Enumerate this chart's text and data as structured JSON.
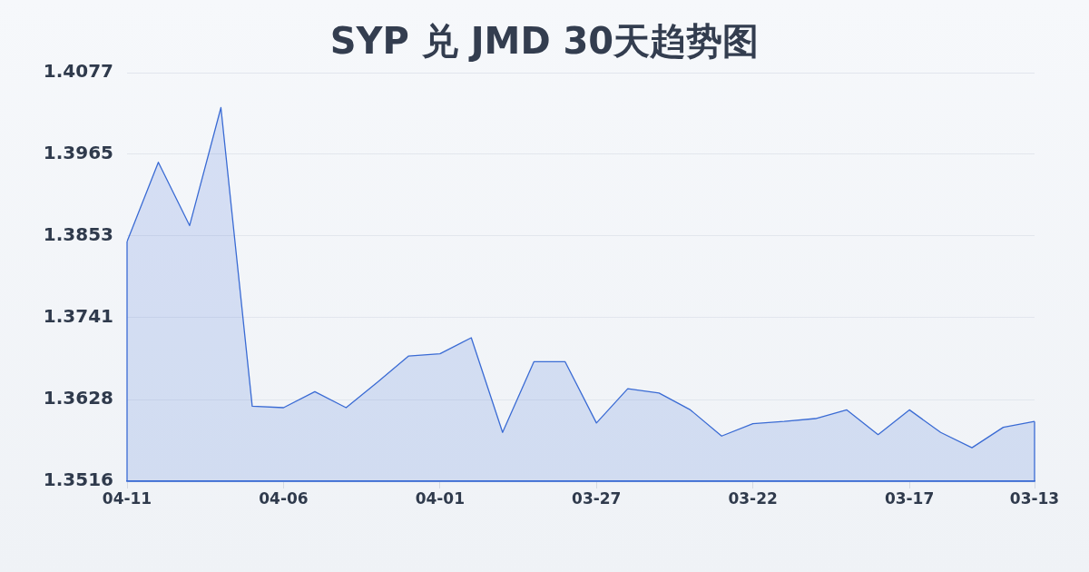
{
  "chart_data": {
    "type": "area",
    "title": "SYP 兑 JMD 30天趋势图",
    "categories": [
      "04-11",
      null,
      null,
      null,
      null,
      "04-06",
      null,
      null,
      null,
      null,
      "04-01",
      null,
      null,
      null,
      null,
      "03-27",
      null,
      null,
      null,
      null,
      "03-22",
      null,
      null,
      null,
      null,
      "03-17",
      null,
      null,
      null,
      "03-13"
    ],
    "values": [
      1.3845,
      1.3954,
      1.3867,
      1.4029,
      1.3619,
      1.3617,
      1.3639,
      1.3617,
      1.3652,
      1.3688,
      1.3691,
      1.3713,
      1.3583,
      1.368,
      1.368,
      1.3596,
      1.3643,
      1.3637,
      1.3614,
      1.3578,
      1.3595,
      1.3598,
      1.3602,
      1.3614,
      1.358,
      1.3614,
      1.3583,
      1.3562,
      1.359,
      1.3598
    ],
    "color": "#3a6bd4",
    "ylim": [
      1.3516,
      1.4077
    ],
    "yticks": [
      1.3516,
      1.3628,
      1.3741,
      1.3853,
      1.3965,
      1.4077
    ],
    "grid": "y",
    "legend": false,
    "marker": "none"
  }
}
